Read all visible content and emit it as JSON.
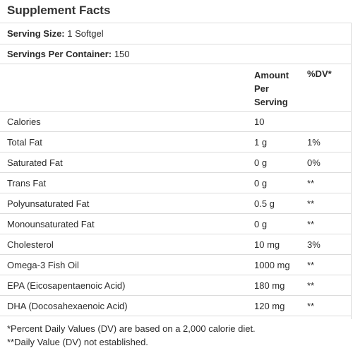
{
  "title": "Supplement Facts",
  "serving_size": {
    "label": "Serving Size:",
    "value": "1 Softgel"
  },
  "servings_per_container": {
    "label": "Servings Per Container:",
    "value": "150"
  },
  "header": {
    "amount": [
      "Amount",
      "Per",
      "Serving"
    ],
    "dv": "%DV*"
  },
  "rows": [
    {
      "name": "Calories",
      "amount": "10",
      "dv": ""
    },
    {
      "name": "Total Fat",
      "amount": "1 g",
      "dv": "1%"
    },
    {
      "name": "Saturated Fat",
      "amount": "0 g",
      "dv": "0%"
    },
    {
      "name": "Trans Fat",
      "amount": "0 g",
      "dv": "**"
    },
    {
      "name": "Polyunsaturated Fat",
      "amount": "0.5 g",
      "dv": "**"
    },
    {
      "name": "Monounsaturated Fat",
      "amount": "0 g",
      "dv": "**"
    },
    {
      "name": "Cholesterol",
      "amount": "10 mg",
      "dv": "3%"
    },
    {
      "name": "Omega-3 Fish Oil",
      "amount": "1000 mg",
      "dv": "**"
    },
    {
      "name": "EPA (Eicosapentaenoic Acid)",
      "amount": "180 mg",
      "dv": "**"
    },
    {
      "name": "DHA (Docosahexaenoic Acid)",
      "amount": "120 mg",
      "dv": "**"
    }
  ],
  "footnotes": [
    "*Percent Daily Values (DV) are based on a 2,000 calorie diet.",
    "**Daily Value (DV) not established."
  ]
}
